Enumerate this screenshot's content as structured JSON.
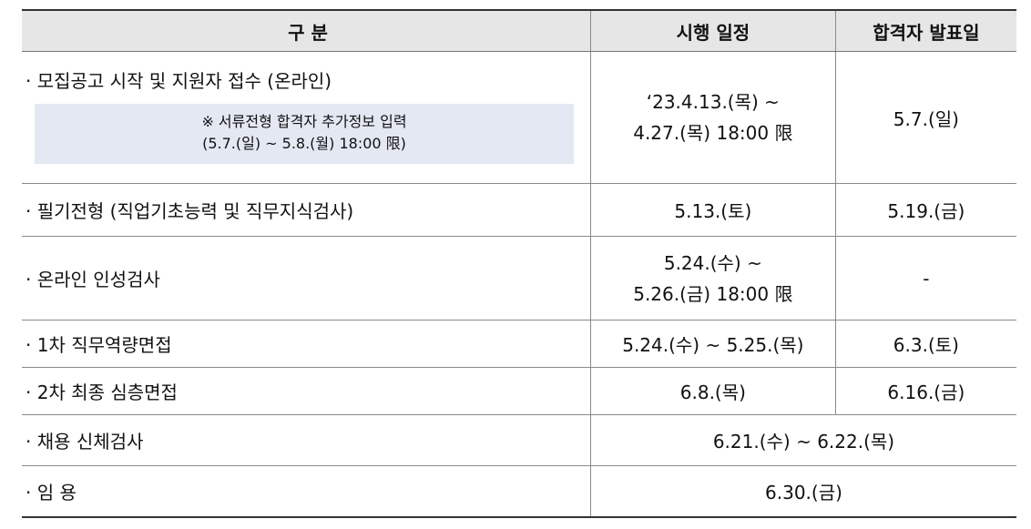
{
  "table": {
    "headers": {
      "category": "구 분",
      "schedule": "시행 일정",
      "announcement": "합격자 발표일"
    },
    "rows": [
      {
        "category": "· 모집공고 시작 및 지원자 접수 (온라인)",
        "note_line1": "※ 서류전형 합격자 추가정보 입력",
        "note_line2": "(5.7.(일) ~ 5.8.(월) 18:00 限)",
        "schedule_line1": "‘23.4.13.(목) ~",
        "schedule_line2": "4.27.(목) 18:00 限",
        "announcement": "5.7.(일)"
      },
      {
        "category": "· 필기전형 (직업기초능력 및 직무지식검사)",
        "schedule": "5.13.(토)",
        "announcement": "5.19.(금)"
      },
      {
        "category": "· 온라인 인성검사",
        "schedule_line1": "5.24.(수) ~",
        "schedule_line2": "5.26.(금) 18:00 限",
        "announcement": "-"
      },
      {
        "category": "· 1차 직무역량면접",
        "schedule": "5.24.(수) ~ 5.25.(목)",
        "announcement": "6.3.(토)"
      },
      {
        "category": "· 2차 최종 심층면접",
        "schedule": "6.8.(목)",
        "announcement": "6.16.(금)"
      },
      {
        "category": "· 채용 신체검사",
        "schedule": "6.21.(수) ~ 6.22.(목)"
      },
      {
        "category": "· 임 용",
        "schedule": "6.30.(금)"
      }
    ]
  }
}
